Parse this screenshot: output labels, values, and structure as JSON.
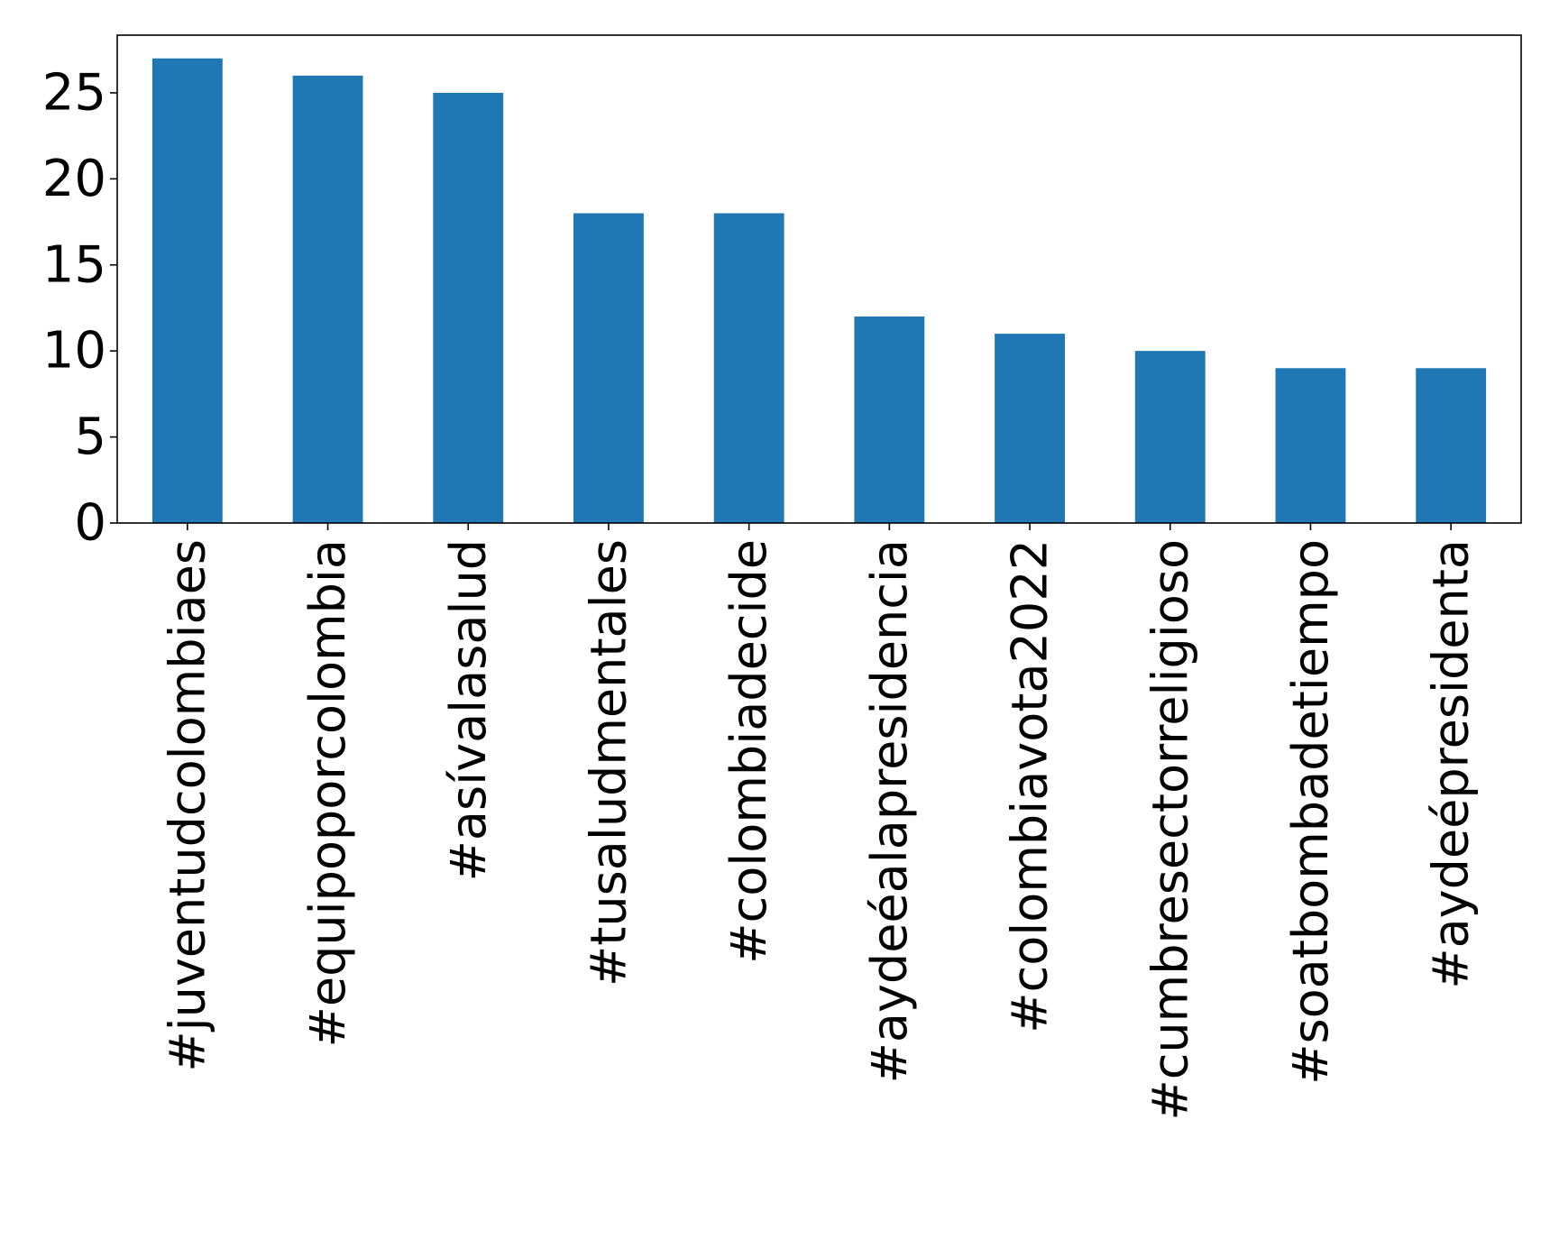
{
  "chart_data": {
    "type": "bar",
    "categories": [
      "#juventudcolombiaes",
      "#equipoporcolombia",
      "#asívalasalud",
      "#tusaludmentales",
      "#colombiadecide",
      "#aydeéalapresidencia",
      "#colombiavota2022",
      "#cumbresectorreligioso",
      "#soatbombadetiempo",
      "#aydeépresidenta"
    ],
    "values": [
      27,
      26,
      25,
      18,
      18,
      12,
      11,
      10,
      9,
      9
    ],
    "title": "",
    "xlabel": "",
    "ylabel": "",
    "ylim": [
      0,
      28.35
    ],
    "yticks": [
      0,
      5,
      10,
      15,
      20,
      25
    ],
    "grid": false,
    "bar_color": "#1f77b4"
  }
}
